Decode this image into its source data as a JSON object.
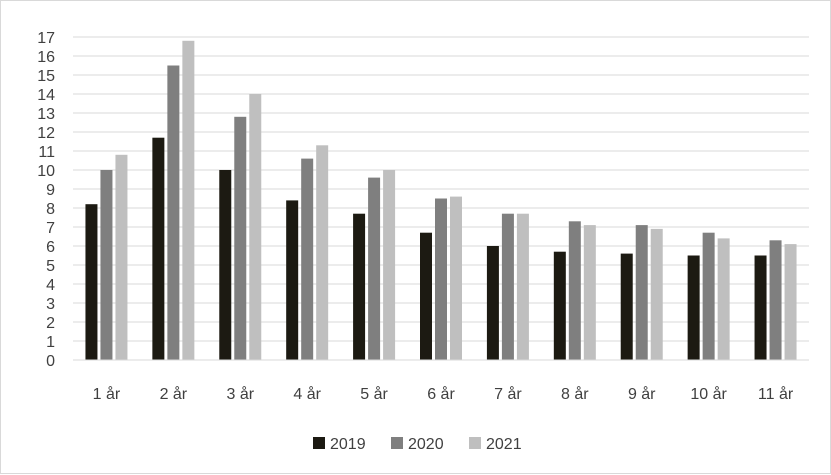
{
  "chart_data": {
    "type": "bar",
    "categories": [
      "1 år",
      "2 år",
      "3 år",
      "4 år",
      "5 år",
      "6 år",
      "7 år",
      "8 år",
      "9 år",
      "10 år",
      "11 år"
    ],
    "series": [
      {
        "name": "2019",
        "color": "#1c1a12",
        "values": [
          8.2,
          11.7,
          10.0,
          8.4,
          7.7,
          6.7,
          6.0,
          5.7,
          5.6,
          5.5,
          5.5
        ]
      },
      {
        "name": "2020",
        "color": "#7f7f7f",
        "values": [
          10.0,
          15.5,
          12.8,
          10.6,
          9.6,
          8.5,
          7.7,
          7.3,
          7.1,
          6.7,
          6.3
        ]
      },
      {
        "name": "2021",
        "color": "#bfbfbf",
        "values": [
          10.8,
          16.8,
          14.0,
          11.3,
          10.0,
          8.6,
          7.7,
          7.1,
          6.9,
          6.4,
          6.1
        ]
      }
    ],
    "ylim": [
      0,
      17
    ],
    "yticks": [
      "0",
      "1",
      "2",
      "3",
      "4",
      "5",
      "6",
      "7",
      "8",
      "9",
      "10",
      "11",
      "12",
      "13",
      "14",
      "15",
      "16",
      "17"
    ],
    "grid": true,
    "legend_position": "bottom",
    "title": "",
    "xlabel": "",
    "ylabel": ""
  }
}
